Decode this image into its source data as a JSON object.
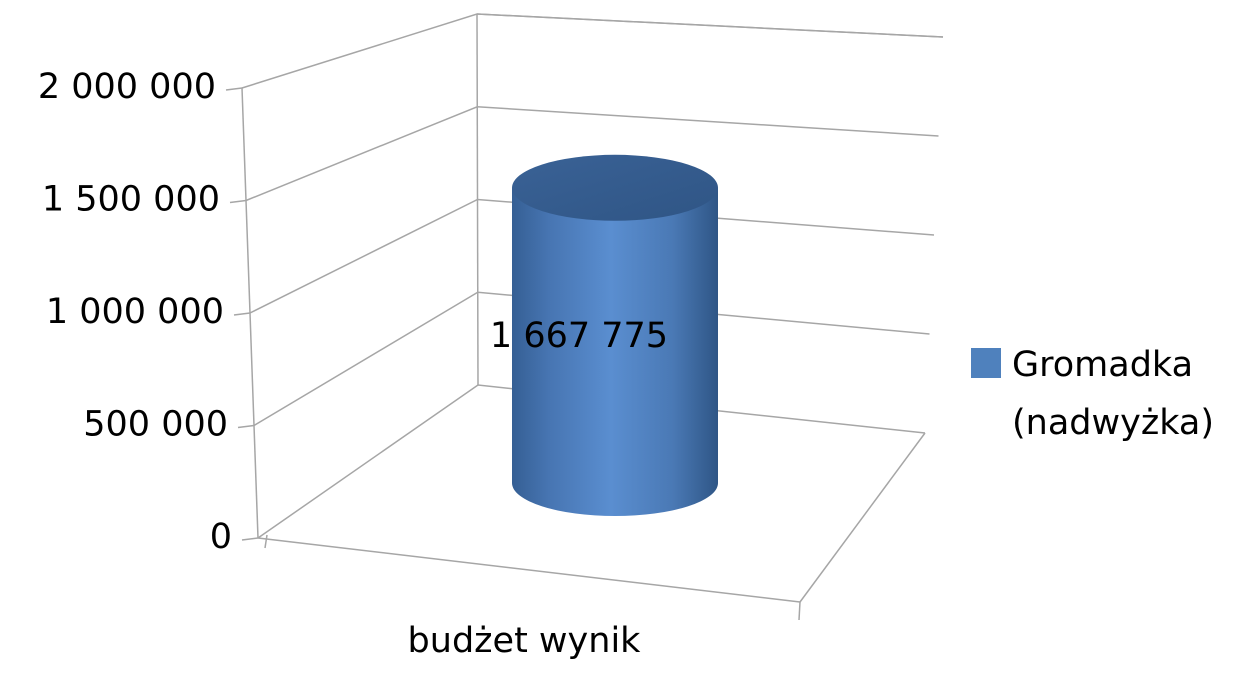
{
  "chart_data": {
    "type": "bar",
    "subtype": "3d-cylinder",
    "categories": [
      "budżet wynik"
    ],
    "series": [
      {
        "name": "Gromadka (nadwyżka)",
        "values": [
          1667775
        ],
        "color": "#4F81BD"
      }
    ],
    "data_labels": [
      "1 667 775"
    ],
    "y_ticks": [
      "0",
      "500 000",
      "1 000 000",
      "1 500 000",
      "2 000 000"
    ],
    "ylim": [
      0,
      2000000
    ],
    "grid": true,
    "legend_position": "right",
    "legend": {
      "label_line1": "Gromadka",
      "label_line2": "(nadwyżka)"
    }
  }
}
